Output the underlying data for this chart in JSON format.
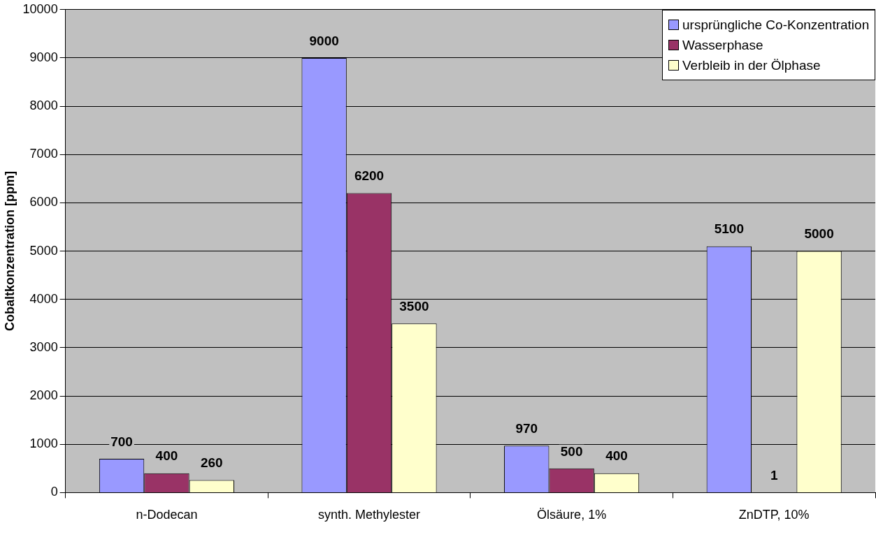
{
  "chart_data": {
    "type": "bar",
    "ylabel": "Cobaltkonzentration [ppm]",
    "categories": [
      "n-Dodecan",
      "synth. Methylester",
      "Ölsäure, 1%",
      "ZnDTP, 10%"
    ],
    "series": [
      {
        "name": "ursprüngliche Co-Konzentration",
        "color": "#9999ff",
        "values": [
          700,
          9000,
          970,
          5100
        ]
      },
      {
        "name": "Wasserphase",
        "color": "#993366",
        "values": [
          400,
          6200,
          500,
          1
        ]
      },
      {
        "name": "Verbleib in der Ölphase",
        "color": "#ffffcc",
        "values": [
          260,
          3500,
          400,
          5000
        ]
      }
    ],
    "ylim": [
      0,
      10000
    ],
    "yticks": [
      0,
      1000,
      2000,
      3000,
      4000,
      5000,
      6000,
      7000,
      8000,
      9000,
      10000
    ],
    "grid": "y",
    "legend": "top right",
    "data_labels": true
  }
}
